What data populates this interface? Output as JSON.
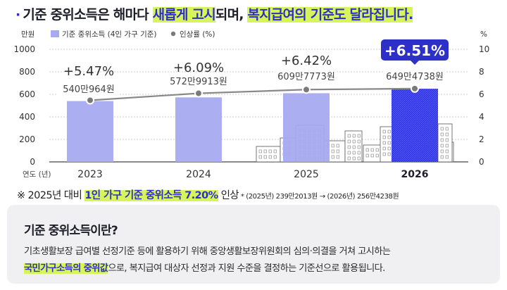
{
  "headline": {
    "bullet": "·",
    "part1": "기준 중위소득은 해마다 ",
    "hl1": "새롭게 고시",
    "part2": "되며, ",
    "hl2": "복지급여의 기준도 달라집니다."
  },
  "colors": {
    "bar": "#a6aaf0",
    "bar_highlight": "#2f33e0",
    "line": "#888888",
    "accent": "#2d2fc9",
    "highlight_bg": "#d7f55a"
  },
  "chart_data": {
    "type": "bar",
    "legend_position": "top",
    "left_axis_unit": "만원",
    "right_axis_unit": "%",
    "x_axis_prefix": "연도 (년)",
    "categories": [
      "2023",
      "2024",
      "2025",
      "2026"
    ],
    "highlight_category": "2026",
    "ylim_left": [
      0,
      1000
    ],
    "yticks_left": [
      "1000",
      "800",
      "600",
      "400",
      "200",
      "0"
    ],
    "ylim_right": [
      0,
      10
    ],
    "yticks_right": [
      "10",
      "8",
      "6",
      "4",
      "2",
      "0"
    ],
    "series": [
      {
        "name": "기준 중위소득 (4인 가구 기준)",
        "type": "bar",
        "axis": "left",
        "values": [
          540.0964,
          572.9913,
          609.7773,
          649.4738
        ],
        "labels": [
          "540만964원",
          "572만9913원",
          "609만7773원",
          "649만4738원"
        ]
      },
      {
        "name": "인상률 (%)",
        "type": "line",
        "axis": "right",
        "values": [
          5.47,
          6.09,
          6.42,
          6.51
        ],
        "labels": [
          "+5.47%",
          "+6.09%",
          "+6.42%",
          "+6.51%"
        ]
      }
    ]
  },
  "footnote": {
    "part1": "※ 2025년 대비 ",
    "hl": "1인 가구 기준 중위소득 7.20%",
    "part2": " 인상",
    "small": " * (2025년) 239만2013원 → (2026년) 256만4238원"
  },
  "info": {
    "title": "기준 중위소득이란?",
    "line1": "기초생활보장 급여별 선정기준 등에 활용하기 위해 중앙생활보장위원회의 심의·의결을 거쳐 고시하는",
    "hl": "국민가구소득의 중위값",
    "line2_rest": "으로, 복지급여 대상자 선정과 지원 수준을 결정하는 기준선으로 활용됩니다."
  }
}
